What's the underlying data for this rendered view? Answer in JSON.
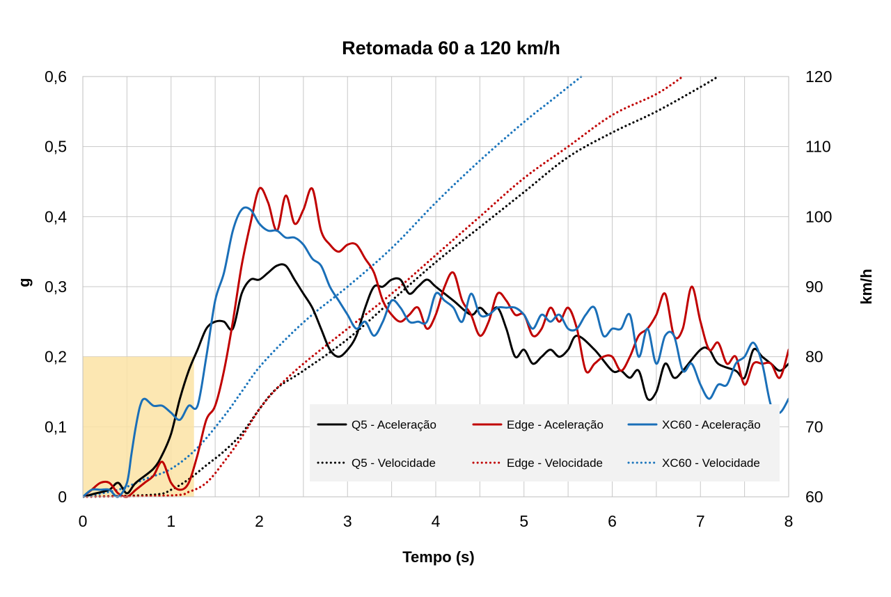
{
  "chart_data": {
    "type": "line",
    "title": "Retomada 60 a 120 km/h",
    "xlabel": "Tempo (s)",
    "ylabel": "g",
    "y2label": "km/h",
    "xlim": [
      0,
      8
    ],
    "ylim": [
      0,
      0.6
    ],
    "y2lim": [
      60,
      120
    ],
    "xticks": [
      "0",
      "1",
      "2",
      "3",
      "4",
      "5",
      "6",
      "7",
      "8"
    ],
    "yticks": [
      "0",
      "0,1",
      "0,2",
      "0,3",
      "0,4",
      "0,5",
      "0,6"
    ],
    "y2ticks": [
      "60",
      "70",
      "80",
      "90",
      "100",
      "110",
      "120"
    ],
    "grid": true,
    "legend_position": "bottom-right",
    "highlight_region": {
      "x": [
        0,
        1.26
      ],
      "y": [
        0,
        0.2
      ],
      "color": "#FBE3A4"
    },
    "series": [
      {
        "name": "Q5 - Aceleração",
        "axis": "left",
        "color": "#000000",
        "style": "solid",
        "points": [
          [
            0,
            0
          ],
          [
            0.15,
            0.005
          ],
          [
            0.3,
            0.01
          ],
          [
            0.4,
            0.02
          ],
          [
            0.5,
            0.005
          ],
          [
            0.6,
            0.02
          ],
          [
            0.8,
            0.04
          ],
          [
            0.9,
            0.06
          ],
          [
            1.0,
            0.09
          ],
          [
            1.1,
            0.14
          ],
          [
            1.2,
            0.18
          ],
          [
            1.3,
            0.21
          ],
          [
            1.4,
            0.24
          ],
          [
            1.5,
            0.25
          ],
          [
            1.6,
            0.25
          ],
          [
            1.7,
            0.24
          ],
          [
            1.8,
            0.29
          ],
          [
            1.9,
            0.31
          ],
          [
            2.0,
            0.31
          ],
          [
            2.1,
            0.32
          ],
          [
            2.2,
            0.33
          ],
          [
            2.3,
            0.33
          ],
          [
            2.4,
            0.31
          ],
          [
            2.5,
            0.29
          ],
          [
            2.6,
            0.27
          ],
          [
            2.7,
            0.24
          ],
          [
            2.8,
            0.21
          ],
          [
            2.9,
            0.2
          ],
          [
            3.0,
            0.21
          ],
          [
            3.1,
            0.23
          ],
          [
            3.2,
            0.27
          ],
          [
            3.3,
            0.3
          ],
          [
            3.4,
            0.3
          ],
          [
            3.5,
            0.31
          ],
          [
            3.6,
            0.31
          ],
          [
            3.7,
            0.29
          ],
          [
            3.8,
            0.3
          ],
          [
            3.9,
            0.31
          ],
          [
            4.0,
            0.3
          ],
          [
            4.2,
            0.28
          ],
          [
            4.4,
            0.26
          ],
          [
            4.5,
            0.27
          ],
          [
            4.6,
            0.26
          ],
          [
            4.7,
            0.27
          ],
          [
            4.8,
            0.24
          ],
          [
            4.9,
            0.2
          ],
          [
            5.0,
            0.21
          ],
          [
            5.1,
            0.19
          ],
          [
            5.2,
            0.2
          ],
          [
            5.3,
            0.21
          ],
          [
            5.4,
            0.2
          ],
          [
            5.5,
            0.21
          ],
          [
            5.6,
            0.23
          ],
          [
            5.8,
            0.21
          ],
          [
            6.0,
            0.18
          ],
          [
            6.1,
            0.18
          ],
          [
            6.2,
            0.17
          ],
          [
            6.3,
            0.18
          ],
          [
            6.4,
            0.14
          ],
          [
            6.5,
            0.15
          ],
          [
            6.6,
            0.19
          ],
          [
            6.7,
            0.17
          ],
          [
            6.8,
            0.18
          ],
          [
            7.0,
            0.21
          ],
          [
            7.1,
            0.21
          ],
          [
            7.2,
            0.19
          ],
          [
            7.4,
            0.18
          ],
          [
            7.5,
            0.17
          ],
          [
            7.6,
            0.21
          ],
          [
            7.7,
            0.2
          ],
          [
            7.8,
            0.19
          ],
          [
            7.9,
            0.18
          ],
          [
            8.0,
            0.19
          ]
        ]
      },
      {
        "name": "Edge - Aceleração",
        "axis": "left",
        "color": "#C00000",
        "style": "solid",
        "points": [
          [
            0,
            0
          ],
          [
            0.1,
            0.01
          ],
          [
            0.2,
            0.02
          ],
          [
            0.3,
            0.02
          ],
          [
            0.4,
            0.005
          ],
          [
            0.5,
            0.0
          ],
          [
            0.6,
            0.01
          ],
          [
            0.7,
            0.02
          ],
          [
            0.8,
            0.03
          ],
          [
            0.9,
            0.05
          ],
          [
            1.0,
            0.02
          ],
          [
            1.1,
            0.01
          ],
          [
            1.2,
            0.02
          ],
          [
            1.3,
            0.06
          ],
          [
            1.4,
            0.11
          ],
          [
            1.5,
            0.13
          ],
          [
            1.6,
            0.18
          ],
          [
            1.7,
            0.25
          ],
          [
            1.8,
            0.33
          ],
          [
            1.9,
            0.39
          ],
          [
            2.0,
            0.44
          ],
          [
            2.1,
            0.42
          ],
          [
            2.2,
            0.38
          ],
          [
            2.3,
            0.43
          ],
          [
            2.4,
            0.39
          ],
          [
            2.5,
            0.41
          ],
          [
            2.6,
            0.44
          ],
          [
            2.7,
            0.38
          ],
          [
            2.8,
            0.36
          ],
          [
            2.9,
            0.35
          ],
          [
            3.0,
            0.36
          ],
          [
            3.1,
            0.36
          ],
          [
            3.2,
            0.34
          ],
          [
            3.3,
            0.32
          ],
          [
            3.4,
            0.28
          ],
          [
            3.5,
            0.26
          ],
          [
            3.6,
            0.25
          ],
          [
            3.7,
            0.26
          ],
          [
            3.8,
            0.27
          ],
          [
            3.9,
            0.24
          ],
          [
            4.0,
            0.26
          ],
          [
            4.1,
            0.3
          ],
          [
            4.2,
            0.32
          ],
          [
            4.3,
            0.28
          ],
          [
            4.4,
            0.26
          ],
          [
            4.5,
            0.23
          ],
          [
            4.6,
            0.25
          ],
          [
            4.7,
            0.29
          ],
          [
            4.8,
            0.28
          ],
          [
            4.9,
            0.26
          ],
          [
            5.0,
            0.26
          ],
          [
            5.1,
            0.23
          ],
          [
            5.2,
            0.24
          ],
          [
            5.3,
            0.27
          ],
          [
            5.4,
            0.25
          ],
          [
            5.5,
            0.27
          ],
          [
            5.6,
            0.24
          ],
          [
            5.7,
            0.18
          ],
          [
            5.8,
            0.19
          ],
          [
            5.9,
            0.2
          ],
          [
            6.0,
            0.2
          ],
          [
            6.1,
            0.18
          ],
          [
            6.2,
            0.2
          ],
          [
            6.3,
            0.23
          ],
          [
            6.4,
            0.24
          ],
          [
            6.5,
            0.26
          ],
          [
            6.6,
            0.29
          ],
          [
            6.7,
            0.23
          ],
          [
            6.8,
            0.24
          ],
          [
            6.9,
            0.3
          ],
          [
            7.0,
            0.25
          ],
          [
            7.1,
            0.21
          ],
          [
            7.2,
            0.22
          ],
          [
            7.3,
            0.19
          ],
          [
            7.4,
            0.2
          ],
          [
            7.5,
            0.16
          ],
          [
            7.6,
            0.19
          ],
          [
            7.7,
            0.19
          ],
          [
            7.8,
            0.19
          ],
          [
            7.9,
            0.17
          ],
          [
            8.0,
            0.21
          ]
        ]
      },
      {
        "name": "XC60 - Aceleração",
        "axis": "left",
        "color": "#1A6FB8",
        "style": "solid",
        "points": [
          [
            0,
            0
          ],
          [
            0.1,
            0.01
          ],
          [
            0.2,
            0.01
          ],
          [
            0.3,
            0.01
          ],
          [
            0.4,
            0.0
          ],
          [
            0.5,
            0.02
          ],
          [
            0.55,
            0.06
          ],
          [
            0.6,
            0.1
          ],
          [
            0.65,
            0.13
          ],
          [
            0.7,
            0.14
          ],
          [
            0.8,
            0.13
          ],
          [
            0.9,
            0.13
          ],
          [
            1.0,
            0.12
          ],
          [
            1.1,
            0.11
          ],
          [
            1.2,
            0.13
          ],
          [
            1.3,
            0.13
          ],
          [
            1.4,
            0.2
          ],
          [
            1.5,
            0.28
          ],
          [
            1.6,
            0.32
          ],
          [
            1.7,
            0.38
          ],
          [
            1.8,
            0.41
          ],
          [
            1.9,
            0.41
          ],
          [
            2.0,
            0.39
          ],
          [
            2.1,
            0.38
          ],
          [
            2.2,
            0.38
          ],
          [
            2.3,
            0.37
          ],
          [
            2.4,
            0.37
          ],
          [
            2.5,
            0.36
          ],
          [
            2.6,
            0.34
          ],
          [
            2.7,
            0.33
          ],
          [
            2.8,
            0.3
          ],
          [
            2.9,
            0.28
          ],
          [
            3.0,
            0.26
          ],
          [
            3.1,
            0.24
          ],
          [
            3.2,
            0.25
          ],
          [
            3.3,
            0.23
          ],
          [
            3.4,
            0.25
          ],
          [
            3.5,
            0.28
          ],
          [
            3.6,
            0.27
          ],
          [
            3.7,
            0.25
          ],
          [
            3.8,
            0.25
          ],
          [
            3.9,
            0.25
          ],
          [
            4.0,
            0.29
          ],
          [
            4.1,
            0.28
          ],
          [
            4.2,
            0.27
          ],
          [
            4.3,
            0.25
          ],
          [
            4.4,
            0.29
          ],
          [
            4.5,
            0.26
          ],
          [
            4.6,
            0.26
          ],
          [
            4.7,
            0.27
          ],
          [
            4.8,
            0.27
          ],
          [
            4.9,
            0.27
          ],
          [
            5.0,
            0.26
          ],
          [
            5.1,
            0.24
          ],
          [
            5.2,
            0.26
          ],
          [
            5.3,
            0.25
          ],
          [
            5.4,
            0.26
          ],
          [
            5.5,
            0.24
          ],
          [
            5.6,
            0.24
          ],
          [
            5.7,
            0.26
          ],
          [
            5.8,
            0.27
          ],
          [
            5.9,
            0.23
          ],
          [
            6.0,
            0.24
          ],
          [
            6.1,
            0.24
          ],
          [
            6.2,
            0.26
          ],
          [
            6.3,
            0.2
          ],
          [
            6.4,
            0.24
          ],
          [
            6.5,
            0.19
          ],
          [
            6.6,
            0.23
          ],
          [
            6.7,
            0.23
          ],
          [
            6.8,
            0.18
          ],
          [
            6.9,
            0.19
          ],
          [
            7.0,
            0.16
          ],
          [
            7.1,
            0.14
          ],
          [
            7.2,
            0.16
          ],
          [
            7.3,
            0.16
          ],
          [
            7.4,
            0.19
          ],
          [
            7.5,
            0.2
          ],
          [
            7.6,
            0.22
          ],
          [
            7.7,
            0.19
          ],
          [
            7.8,
            0.13
          ],
          [
            7.9,
            0.12
          ],
          [
            8.0,
            0.14
          ]
        ]
      },
      {
        "name": "Q5 - Velocidade",
        "axis": "right",
        "color": "#000000",
        "style": "dotted",
        "points": [
          [
            0,
            60
          ],
          [
            0.8,
            60.3
          ],
          [
            1.0,
            61
          ],
          [
            1.2,
            62.5
          ],
          [
            1.4,
            64.5
          ],
          [
            1.6,
            66.5
          ],
          [
            1.8,
            69
          ],
          [
            2.0,
            72.5
          ],
          [
            2.2,
            75.5
          ],
          [
            2.5,
            78
          ],
          [
            3.0,
            82.5
          ],
          [
            3.5,
            88
          ],
          [
            4.0,
            93.5
          ],
          [
            4.5,
            98.5
          ],
          [
            5.0,
            103.5
          ],
          [
            5.5,
            108.5
          ],
          [
            6.0,
            112
          ],
          [
            6.5,
            115
          ],
          [
            7.0,
            118.5
          ],
          [
            7.2,
            120
          ]
        ]
      },
      {
        "name": "Edge - Velocidade",
        "axis": "right",
        "color": "#C00000",
        "style": "dotted",
        "points": [
          [
            0,
            60
          ],
          [
            1.0,
            60.2
          ],
          [
            1.2,
            60.7
          ],
          [
            1.4,
            62
          ],
          [
            1.6,
            65
          ],
          [
            1.8,
            68.5
          ],
          [
            2.0,
            72.5
          ],
          [
            2.2,
            75.5
          ],
          [
            2.5,
            79
          ],
          [
            3.0,
            84
          ],
          [
            3.5,
            89
          ],
          [
            4.0,
            94.5
          ],
          [
            4.5,
            100
          ],
          [
            5.0,
            105.5
          ],
          [
            5.5,
            110
          ],
          [
            6.0,
            114.5
          ],
          [
            6.5,
            117.5
          ],
          [
            6.8,
            120
          ]
        ]
      },
      {
        "name": "XC60 - Velocidade",
        "axis": "right",
        "color": "#1B75BC",
        "style": "dotted",
        "points": [
          [
            0,
            60
          ],
          [
            0.4,
            61
          ],
          [
            0.7,
            62.5
          ],
          [
            1.0,
            64
          ],
          [
            1.3,
            67
          ],
          [
            1.6,
            71.5
          ],
          [
            1.8,
            75
          ],
          [
            2.0,
            78.5
          ],
          [
            2.3,
            82.5
          ],
          [
            2.6,
            86
          ],
          [
            3.0,
            90
          ],
          [
            3.5,
            95.5
          ],
          [
            4.0,
            102
          ],
          [
            4.5,
            108
          ],
          [
            5.0,
            113.5
          ],
          [
            5.3,
            116.5
          ],
          [
            5.65,
            120
          ]
        ]
      }
    ]
  }
}
